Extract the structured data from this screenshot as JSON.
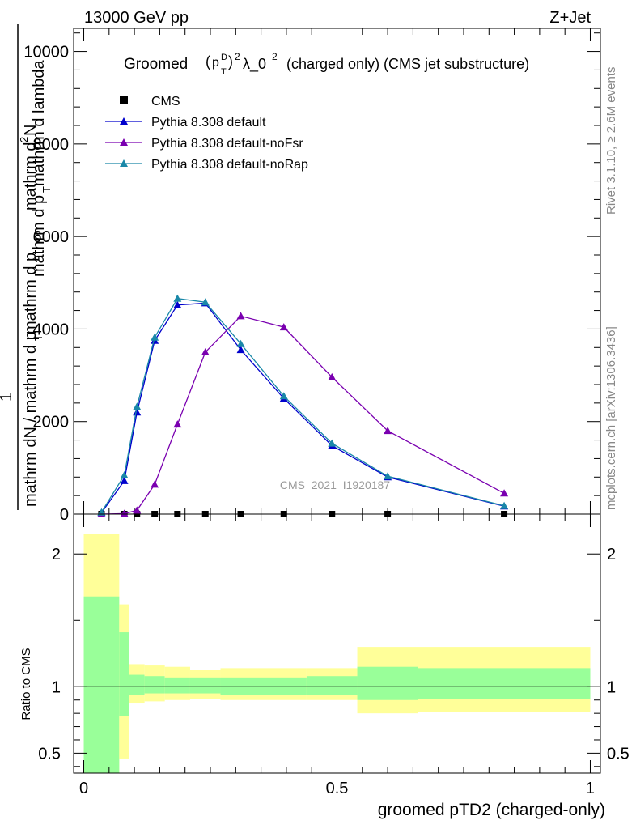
{
  "header": {
    "left": "13000 GeV pp",
    "right": "Z+Jet"
  },
  "side_labels": {
    "rivet": "Rivet 3.1.10, ≥ 2.6M events",
    "mcplots": "mcplots.cern.ch [arXiv:1306.3436]"
  },
  "watermark": "CMS_2021_I1920187",
  "colors": {
    "cms": "#000000",
    "default": "#0000cc",
    "noFsr": "#7a00b0",
    "noRap": "#1a88a8",
    "band_outer": "#ffff99",
    "band_inner": "#99ff99"
  },
  "chart_data": [
    {
      "type": "line",
      "title_parts": {
        "prefix": "Groomed",
        "p": "p",
        "sup_d": "D",
        "sub_t": "T",
        "sq": "2",
        "lam": "λ_0",
        "sq2": "2",
        "suffix": "(charged only) (CMS jet substructure)"
      },
      "ylabel_parts": {
        "top_line1": "mathrm d",
        "top_sup": "2",
        "top_line1b": "N",
        "top_line2": "mathrm d p",
        "top_sub": "T",
        "top_line2b": " mathrm d lambda",
        "numerator": "1",
        "denominator": "mathrm dN / mathrm d p",
        "den_sub": "T",
        "den_tail": " mathrm d p"
      },
      "ylim": [
        0,
        10500
      ],
      "yticks": [
        "0",
        "2000",
        "4000",
        "6000",
        "8000",
        "10000"
      ],
      "ytick_values": [
        0,
        2000,
        4000,
        6000,
        8000,
        10000
      ],
      "xlim": [
        -0.02,
        1.02
      ],
      "legend": {
        "placement": "top-left",
        "entries": [
          "CMS",
          "Pythia 8.308 default",
          "Pythia 8.308 default-noFsr",
          "Pythia 8.308 default-noRap"
        ]
      },
      "series": [
        {
          "name": "CMS",
          "marker": "square",
          "x": [
            0.035,
            0.08,
            0.105,
            0.14,
            0.185,
            0.24,
            0.31,
            0.395,
            0.49,
            0.6,
            0.83
          ],
          "y": [
            0,
            0,
            0,
            0,
            0,
            0,
            0,
            0,
            0,
            0,
            0
          ]
        },
        {
          "name": "Pythia 8.308 default",
          "marker": "triangle",
          "x": [
            0.035,
            0.08,
            0.105,
            0.14,
            0.185,
            0.24,
            0.31,
            0.395,
            0.49,
            0.6,
            0.83
          ],
          "y": [
            30,
            720,
            2200,
            3750,
            4520,
            4560,
            3550,
            2500,
            1480,
            800,
            170
          ]
        },
        {
          "name": "Pythia 8.308 default-noFsr",
          "marker": "triangle",
          "x": [
            0.035,
            0.08,
            0.105,
            0.14,
            0.185,
            0.24,
            0.31,
            0.395,
            0.49,
            0.6,
            0.83
          ],
          "y": [
            0,
            10,
            80,
            640,
            1940,
            3500,
            4280,
            4040,
            2960,
            1800,
            450
          ]
        },
        {
          "name": "Pythia 8.308 default-noRap",
          "marker": "triangle",
          "x": [
            0.035,
            0.08,
            0.105,
            0.14,
            0.185,
            0.24,
            0.31,
            0.395,
            0.49,
            0.6,
            0.83
          ],
          "y": [
            40,
            840,
            2320,
            3820,
            4660,
            4580,
            3680,
            2550,
            1530,
            820,
            180
          ]
        }
      ]
    },
    {
      "type": "area",
      "ylabel": "Ratio to CMS",
      "xlabel": "groomed pTD2 (charged-only)",
      "ylim": [
        0.35,
        2.3
      ],
      "yticks": [
        "0.5",
        "1",
        "2"
      ],
      "ytick_values": [
        0.5,
        1,
        2
      ],
      "xlim": [
        -0.02,
        1.02
      ],
      "xticks": [
        "0",
        "0.5",
        "1"
      ],
      "xtick_values": [
        0,
        0.5,
        1
      ],
      "reference_line": 1,
      "bins": [
        {
          "x0": 0.0,
          "x1": 0.07,
          "outer": [
            0.33,
            2.15
          ],
          "inner": [
            0.33,
            1.68
          ]
        },
        {
          "x0": 0.07,
          "x1": 0.09,
          "outer": [
            0.46,
            1.62
          ],
          "inner": [
            0.78,
            1.41
          ]
        },
        {
          "x0": 0.09,
          "x1": 0.12,
          "outer": [
            0.88,
            1.17
          ],
          "inner": [
            0.94,
            1.09
          ]
        },
        {
          "x0": 0.12,
          "x1": 0.16,
          "outer": [
            0.89,
            1.16
          ],
          "inner": [
            0.95,
            1.08
          ]
        },
        {
          "x0": 0.16,
          "x1": 0.21,
          "outer": [
            0.9,
            1.15
          ],
          "inner": [
            0.95,
            1.07
          ]
        },
        {
          "x0": 0.21,
          "x1": 0.27,
          "outer": [
            0.91,
            1.13
          ],
          "inner": [
            0.95,
            1.07
          ]
        },
        {
          "x0": 0.27,
          "x1": 0.35,
          "outer": [
            0.9,
            1.14
          ],
          "inner": [
            0.94,
            1.07
          ]
        },
        {
          "x0": 0.35,
          "x1": 0.44,
          "outer": [
            0.9,
            1.14
          ],
          "inner": [
            0.94,
            1.07
          ]
        },
        {
          "x0": 0.44,
          "x1": 0.54,
          "outer": [
            0.9,
            1.14
          ],
          "inner": [
            0.94,
            1.08
          ]
        },
        {
          "x0": 0.54,
          "x1": 0.66,
          "outer": [
            0.8,
            1.3
          ],
          "inner": [
            0.9,
            1.15
          ]
        },
        {
          "x0": 0.66,
          "x1": 1.0,
          "outer": [
            0.81,
            1.3
          ],
          "inner": [
            0.91,
            1.14
          ]
        }
      ]
    }
  ]
}
